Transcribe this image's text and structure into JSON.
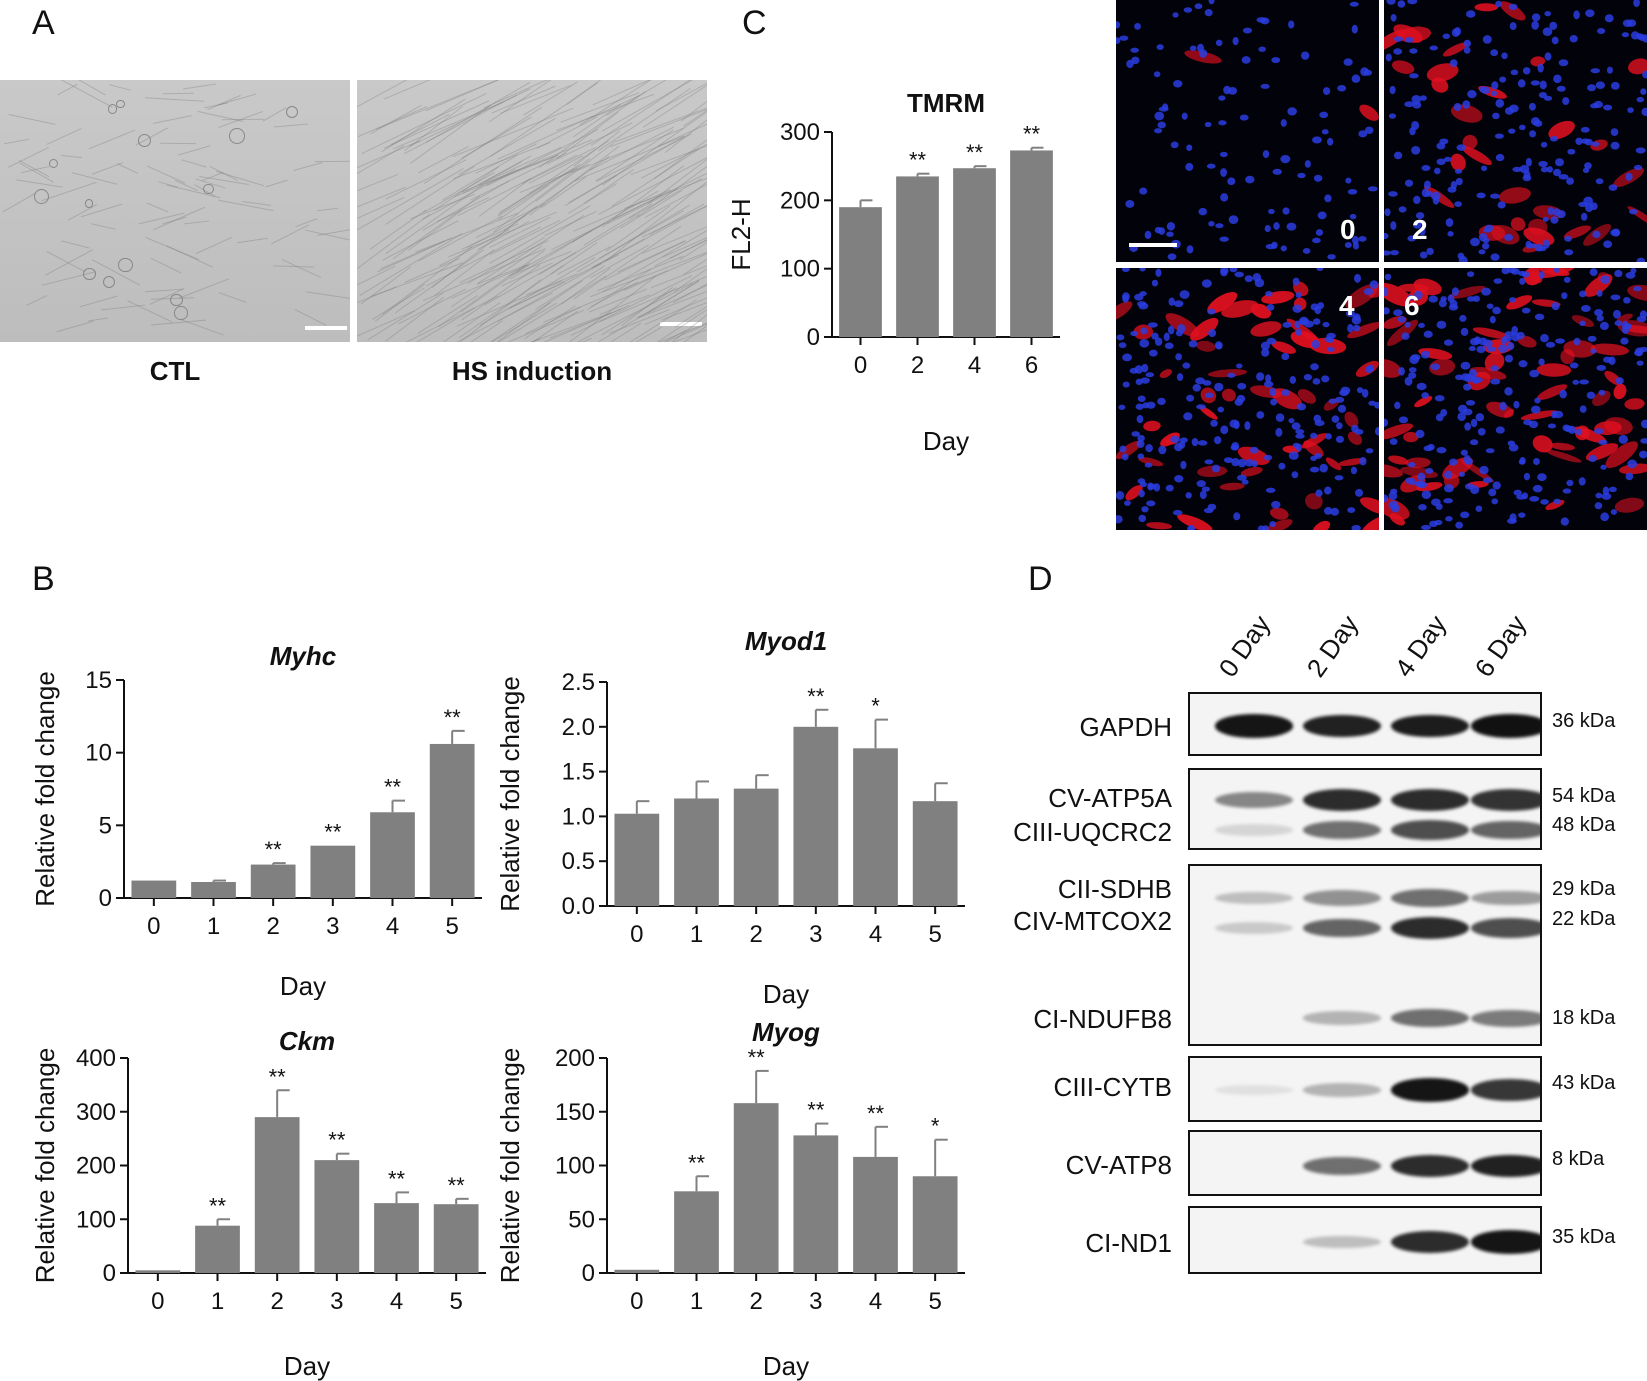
{
  "panels": {
    "A": "A",
    "B": "B",
    "C": "C",
    "D": "D"
  },
  "panelA": {
    "images": [
      {
        "label": "CTL"
      },
      {
        "label": "HS induction"
      }
    ]
  },
  "panelC": {
    "fluor_labels": [
      "0",
      "2",
      "4",
      "6"
    ]
  },
  "chart_data": [
    {
      "id": "tmrm",
      "type": "bar",
      "title": "TMRM",
      "xlabel": "Day",
      "ylabel": "FL2-H",
      "categories": [
        "0",
        "2",
        "4",
        "6"
      ],
      "values": [
        190,
        235,
        247,
        273
      ],
      "errors": [
        10,
        4,
        3,
        4
      ],
      "sig": [
        "",
        "**",
        "**",
        "**"
      ],
      "ylim": [
        0,
        300
      ],
      "yticks": [
        0,
        100,
        200,
        300
      ],
      "grid": false
    },
    {
      "id": "myhc",
      "type": "bar",
      "title": "Myhc",
      "xlabel": "Day",
      "ylabel": "Relative fold change",
      "categories": [
        "0",
        "1",
        "2",
        "3",
        "4",
        "5"
      ],
      "values": [
        1.2,
        1.1,
        2.3,
        3.6,
        5.9,
        10.6
      ],
      "errors": [
        0,
        0.1,
        0.1,
        0,
        0.8,
        0.9
      ],
      "sig": [
        "",
        "",
        "**",
        "**",
        "**",
        "**"
      ],
      "ylim": [
        0,
        15
      ],
      "yticks": [
        0,
        5,
        10,
        15
      ],
      "grid": false
    },
    {
      "id": "myod1",
      "type": "bar",
      "title": "Myod1",
      "xlabel": "Day",
      "ylabel": "Relative fold change",
      "categories": [
        "0",
        "1",
        "2",
        "3",
        "4",
        "5"
      ],
      "values": [
        1.03,
        1.2,
        1.31,
        2.0,
        1.76,
        1.17
      ],
      "errors": [
        0.14,
        0.19,
        0.15,
        0.19,
        0.32,
        0.2
      ],
      "sig": [
        "",
        "",
        "",
        "**",
        "*",
        ""
      ],
      "ylim": [
        0,
        2.5
      ],
      "yticks": [
        0.0,
        0.5,
        1.0,
        1.5,
        2.0,
        2.5
      ],
      "grid": false
    },
    {
      "id": "ckm",
      "type": "bar",
      "title": "Ckm",
      "xlabel": "Day",
      "ylabel": "Relative fold change",
      "categories": [
        "0",
        "1",
        "2",
        "3",
        "4",
        "5"
      ],
      "values": [
        5,
        88,
        290,
        210,
        130,
        128
      ],
      "errors": [
        0,
        12,
        50,
        12,
        20,
        10
      ],
      "sig": [
        "",
        "**",
        "**",
        "**",
        "**",
        "**"
      ],
      "ylim": [
        0,
        400
      ],
      "yticks": [
        0,
        100,
        200,
        300,
        400
      ],
      "grid": false
    },
    {
      "id": "myog",
      "type": "bar",
      "title": "Myog",
      "xlabel": "Day",
      "ylabel": "Relative fold change",
      "categories": [
        "0",
        "1",
        "2",
        "3",
        "4",
        "5"
      ],
      "values": [
        3,
        76,
        158,
        128,
        108,
        90
      ],
      "errors": [
        0,
        14,
        30,
        11,
        28,
        34
      ],
      "sig": [
        "",
        "**",
        "**",
        "**",
        "**",
        "*"
      ],
      "ylim": [
        0,
        200
      ],
      "yticks": [
        0,
        50,
        100,
        150,
        200
      ],
      "grid": false
    }
  ],
  "panelD": {
    "lanes": [
      "0 Day",
      "2 Day",
      "4 Day",
      "6 Day"
    ],
    "blots": [
      {
        "proteins": [
          "GAPDH"
        ],
        "kda": [
          "36 kDa"
        ],
        "intensity": [
          [
            0.95,
            0.9,
            0.92,
            0.97
          ]
        ]
      },
      {
        "proteins": [
          "CV-ATP5A",
          "CIII-UQCRC2"
        ],
        "kda": [
          "54 kDa",
          "48 kDa"
        ],
        "intensity": [
          [
            0.45,
            0.85,
            0.85,
            0.82
          ],
          [
            0.1,
            0.55,
            0.7,
            0.6
          ]
        ]
      },
      {
        "proteins": [
          "CII-SDHB",
          "CIV-MTCOX2",
          "CI-NDUFB8"
        ],
        "kda": [
          "29 kDa",
          "22 kDa",
          "18 kDa"
        ],
        "intensity": [
          [
            0.2,
            0.4,
            0.55,
            0.35
          ],
          [
            0.15,
            0.6,
            0.85,
            0.7
          ],
          [
            0,
            0.25,
            0.55,
            0.5
          ]
        ]
      },
      {
        "proteins": [
          "CIII-CYTB"
        ],
        "kda": [
          "43 kDa"
        ],
        "intensity": [
          [
            0.05,
            0.25,
            0.95,
            0.8
          ]
        ]
      },
      {
        "proteins": [
          "CV-ATP8"
        ],
        "kda": [
          "8 kDa"
        ],
        "intensity": [
          [
            0,
            0.55,
            0.85,
            0.9
          ]
        ]
      },
      {
        "proteins": [
          "CI-ND1"
        ],
        "kda": [
          "35 kDa"
        ],
        "intensity": [
          [
            0,
            0.2,
            0.85,
            0.95
          ]
        ]
      }
    ]
  },
  "colors": {
    "bar": "#808080",
    "axis": "#111111",
    "red_signal": "#e01020",
    "blue_signal": "#2a3de0"
  }
}
